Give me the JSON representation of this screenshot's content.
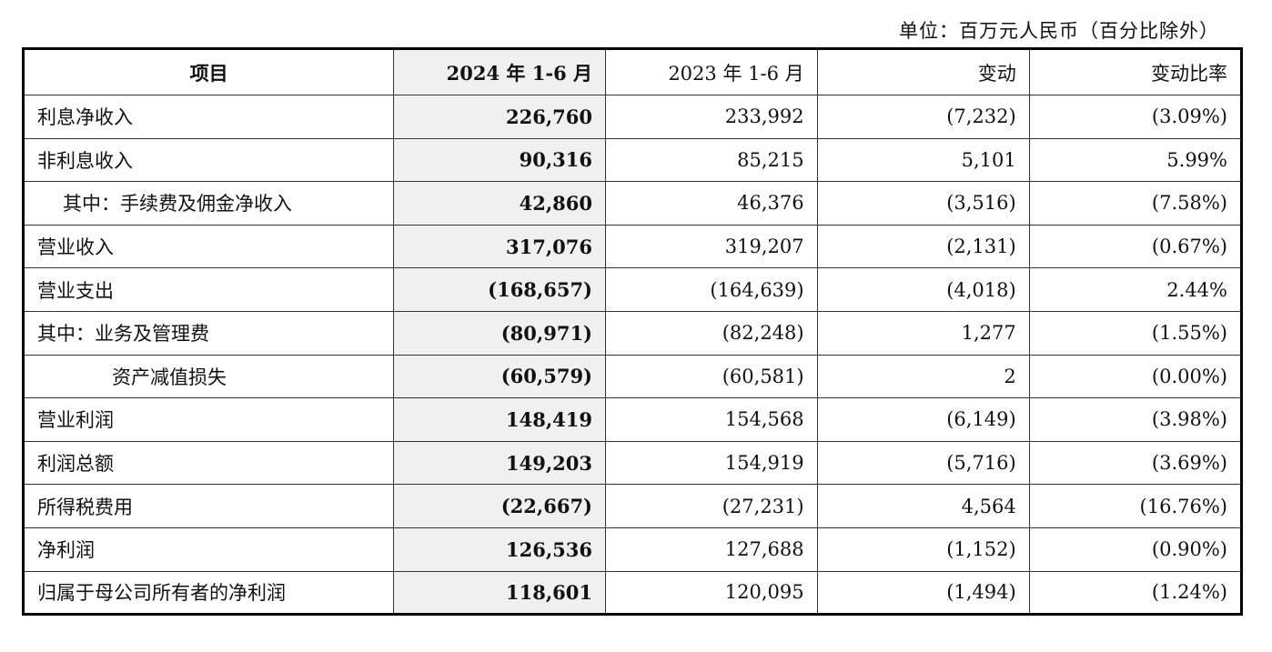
{
  "header": {
    "unit": "单位：百万元人民币（百分比除外）"
  },
  "table": {
    "columns": [
      "项目",
      "2024 年 1-6 月",
      "2023 年 1-6 月",
      "变动",
      "变动比率"
    ],
    "rows": [
      [
        "利息净收入",
        "226,760",
        "233,992",
        "(7,232)",
        "(3.09%)"
      ],
      [
        "非利息收入",
        "90,316",
        "85,215",
        "5,101",
        "5.99%"
      ],
      [
        "其中：手续费及佣金净收入",
        "42,860",
        "46,376",
        "(3,516)",
        "(7.58%)"
      ],
      [
        "营业收入",
        "317,076",
        "319,207",
        "(2,131)",
        "(0.67%)"
      ],
      [
        "营业支出",
        "(168,657)",
        "(164,639)",
        "(4,018)",
        "2.44%"
      ],
      [
        "其中：业务及管理费",
        "(80,971)",
        "(82,248)",
        "1,277",
        "(1.55%)"
      ],
      [
        "资产减值损失",
        "(60,579)",
        "(60,581)",
        "2",
        "(0.00%)"
      ],
      [
        "营业利润",
        "148,419",
        "154,568",
        "(6,149)",
        "(3.98%)"
      ],
      [
        "利润总额",
        "149,203",
        "154,919",
        "(5,716)",
        "(3.69%)"
      ],
      [
        "所得税费用",
        "(22,667)",
        "(27,231)",
        "4,564",
        "(16.76%)"
      ],
      [
        "净利润",
        "126,536",
        "127,688",
        "(1,152)",
        "(0.90%)"
      ],
      [
        "归属于母公司所有者的净利润",
        "118,601",
        "120,095",
        "(1,494)",
        "(1.24%)"
      ]
    ]
  }
}
